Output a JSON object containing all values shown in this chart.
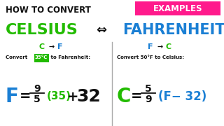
{
  "bg_color": "#ffffff",
  "title_text": "HOW TO CONVERT",
  "title_color": "#111111",
  "celsius_text": "CELSIUS",
  "celsius_color": "#22bb00",
  "fahrenheit_text": "FAHRENHEIT",
  "fahrenheit_color": "#1a7fd4",
  "arrow_symbol": "⇔",
  "examples_text": "EXAMPLES",
  "examples_bg": "#ff1a8c",
  "examples_color": "#ffffff",
  "green": "#22bb00",
  "blue": "#1a7fd4",
  "black": "#111111",
  "white": "#ffffff",
  "divider_color": "#aaaaaa"
}
